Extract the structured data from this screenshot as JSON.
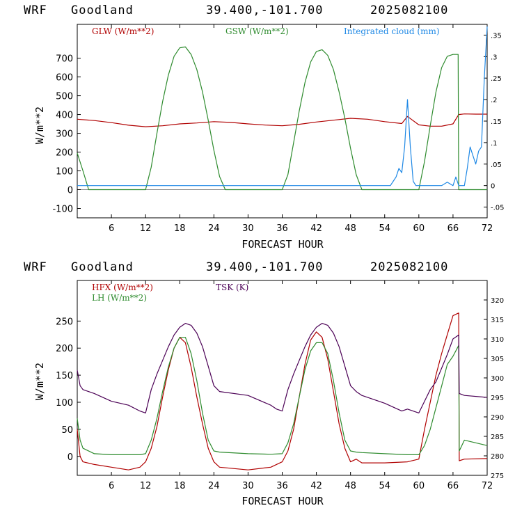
{
  "colors": {
    "red": "#b00000",
    "green": "#2e8b2e",
    "blue": "#1e88e5",
    "purple": "#4b0055"
  },
  "chart_data": [
    {
      "type": "line",
      "header": {
        "model": "WRF",
        "station": "Goodland",
        "coords": "39.400,-101.700",
        "date": "2025082100"
      },
      "xlabel": "FORECAST HOUR",
      "ylabel": "W/m**2",
      "xlim": [
        0,
        72
      ],
      "ylim": [
        -150,
        880
      ],
      "y2lim": [
        -0.075,
        0.375
      ],
      "x_ticks": [
        6,
        12,
        18,
        24,
        30,
        36,
        42,
        48,
        54,
        60,
        66,
        72
      ],
      "y_ticks": [
        -100,
        0,
        100,
        200,
        300,
        400,
        500,
        600,
        700
      ],
      "y2_ticks": [
        {
          "v": -0.05,
          "label": "-.05"
        },
        {
          "v": 0,
          "label": "0"
        },
        {
          "v": 0.05,
          "label": ".05"
        },
        {
          "v": 0.1,
          "label": ".1"
        },
        {
          "v": 0.15,
          "label": ".15"
        },
        {
          "v": 0.2,
          "label": ".2"
        },
        {
          "v": 0.25,
          "label": ".25"
        },
        {
          "v": 0.3,
          "label": ".3"
        },
        {
          "v": 0.35,
          "label": ".35"
        }
      ],
      "series": [
        {
          "name": "GLW (W/m**2)",
          "color": "#b00000",
          "axis": "left",
          "x": [
            0,
            3,
            6,
            9,
            12,
            15,
            18,
            21,
            24,
            27,
            30,
            33,
            36,
            39,
            42,
            45,
            48,
            51,
            54,
            57,
            58,
            60,
            62,
            64,
            66,
            67,
            68,
            70,
            72
          ],
          "y": [
            375,
            368,
            357,
            343,
            335,
            340,
            350,
            355,
            362,
            358,
            350,
            344,
            340,
            348,
            360,
            370,
            380,
            375,
            362,
            352,
            390,
            345,
            338,
            338,
            350,
            400,
            403,
            402,
            402
          ]
        },
        {
          "name": "GSW (W/m**2)",
          "color": "#2e8b2e",
          "axis": "left",
          "x": [
            0,
            1,
            2,
            12,
            13,
            14,
            15,
            16,
            17,
            18,
            19,
            20,
            21,
            22,
            23,
            24,
            25,
            26,
            36,
            37,
            38,
            39,
            40,
            41,
            42,
            43,
            44,
            45,
            46,
            47,
            48,
            49,
            50,
            60,
            61,
            62,
            63,
            64,
            65,
            66,
            66.9,
            67,
            72
          ],
          "y": [
            195,
            100,
            0,
            0,
            120,
            300,
            470,
            610,
            710,
            755,
            760,
            720,
            640,
            520,
            370,
            210,
            70,
            0,
            0,
            80,
            250,
            420,
            570,
            680,
            735,
            745,
            715,
            640,
            520,
            380,
            220,
            80,
            0,
            0,
            150,
            340,
            520,
            650,
            710,
            720,
            720,
            0,
            0
          ]
        },
        {
          "name": "Integrated cloud (mm)",
          "color": "#1e88e5",
          "axis": "right",
          "x": [
            0,
            55,
            55.5,
            56,
            56.5,
            57,
            57.5,
            58,
            58.5,
            59,
            59.5,
            60,
            64,
            65,
            66,
            66.5,
            67,
            68,
            68.5,
            69,
            69.5,
            70,
            70.5,
            71,
            71.5,
            72
          ],
          "y": [
            0,
            0,
            0.01,
            0.02,
            0.04,
            0.03,
            0.09,
            0.2,
            0.09,
            0.01,
            0,
            0,
            0,
            0.008,
            0,
            0.02,
            0,
            0,
            0.04,
            0.09,
            0.07,
            0.05,
            0.08,
            0.09,
            0.25,
            0.37
          ]
        }
      ]
    },
    {
      "type": "line",
      "header": {
        "model": "WRF",
        "station": "Goodland",
        "coords": "39.400,-101.700",
        "date": "2025082100"
      },
      "xlabel": "FORECAST HOUR",
      "ylabel": "W/m**2",
      "xlim": [
        0,
        72
      ],
      "ylim": [
        -35,
        325
      ],
      "y2lim": [
        275,
        325
      ],
      "x_ticks": [
        6,
        12,
        18,
        24,
        30,
        36,
        42,
        48,
        54,
        60,
        66,
        72
      ],
      "y_ticks": [
        0,
        50,
        100,
        150,
        200,
        250
      ],
      "y2_ticks": [
        {
          "v": 275,
          "label": "275"
        },
        {
          "v": 280,
          "label": "280"
        },
        {
          "v": 285,
          "label": "285"
        },
        {
          "v": 290,
          "label": "290"
        },
        {
          "v": 295,
          "label": "295"
        },
        {
          "v": 300,
          "label": "300"
        },
        {
          "v": 305,
          "label": "305"
        },
        {
          "v": 310,
          "label": "310"
        },
        {
          "v": 315,
          "label": "315"
        },
        {
          "v": 320,
          "label": "320"
        }
      ],
      "series": [
        {
          "name": "HFX (W/m**2)",
          "color": "#b00000",
          "axis": "left",
          "x": [
            0,
            0.5,
            1,
            3,
            6,
            9,
            11,
            12,
            13,
            14,
            15,
            16,
            17,
            18,
            19,
            20,
            21,
            22,
            23,
            24,
            25,
            30,
            34,
            36,
            37,
            38,
            39,
            40,
            41,
            42,
            43,
            44,
            45,
            46,
            47,
            48,
            49,
            50,
            54,
            58,
            60,
            61,
            62,
            63,
            64,
            65,
            66,
            67,
            67.1,
            68,
            72
          ],
          "y": [
            50,
            0,
            -10,
            -15,
            -20,
            -25,
            -20,
            -10,
            15,
            55,
            110,
            160,
            200,
            220,
            210,
            165,
            110,
            60,
            15,
            -10,
            -20,
            -25,
            -20,
            -10,
            10,
            50,
            110,
            170,
            215,
            230,
            220,
            180,
            120,
            60,
            15,
            -10,
            -5,
            -12,
            -12,
            -10,
            -5,
            50,
            100,
            150,
            190,
            225,
            260,
            265,
            -8,
            -5,
            -4
          ]
        },
        {
          "name": "LH (W/m**2)",
          "color": "#2e8b2e",
          "axis": "left",
          "x": [
            0,
            0.5,
            1,
            3,
            6,
            9,
            11,
            12,
            13,
            14,
            15,
            16,
            17,
            18,
            19,
            20,
            21,
            22,
            23,
            24,
            25,
            30,
            34,
            36,
            37,
            38,
            39,
            40,
            41,
            42,
            43,
            44,
            45,
            46,
            47,
            48,
            49,
            50,
            54,
            58,
            60,
            61,
            62,
            63,
            64,
            65,
            66,
            67,
            67.1,
            68,
            70,
            72
          ],
          "y": [
            70,
            30,
            15,
            5,
            3,
            3,
            3,
            5,
            30,
            70,
            120,
            165,
            200,
            220,
            220,
            190,
            140,
            80,
            30,
            10,
            8,
            5,
            4,
            5,
            25,
            60,
            110,
            160,
            195,
            210,
            210,
            190,
            140,
            80,
            30,
            10,
            8,
            7,
            5,
            3,
            3,
            20,
            50,
            90,
            130,
            170,
            185,
            205,
            10,
            30,
            25,
            20
          ]
        },
        {
          "name": "TSK (K)",
          "color": "#4b0055",
          "axis": "right",
          "x": [
            0,
            0.5,
            1,
            3,
            6,
            9,
            11,
            12,
            13,
            14,
            15,
            16,
            17,
            18,
            19,
            20,
            21,
            22,
            23,
            24,
            25,
            30,
            34,
            35,
            36,
            37,
            38,
            39,
            40,
            41,
            42,
            43,
            44,
            45,
            46,
            47,
            48,
            49,
            50,
            54,
            57,
            58,
            60,
            61,
            62,
            63,
            64,
            65,
            66,
            67,
            67.1,
            68,
            72
          ],
          "y": [
            302,
            298,
            297,
            296,
            294,
            293,
            291.5,
            291,
            297,
            301,
            304.5,
            308,
            311,
            313,
            314,
            313.5,
            311.5,
            308,
            303,
            298,
            296.5,
            295.5,
            293,
            292,
            291.5,
            297,
            301,
            304.5,
            308,
            311,
            313,
            314,
            313.5,
            311.5,
            308,
            303,
            298,
            296.5,
            295.5,
            293.5,
            291.5,
            292,
            291,
            294,
            297,
            299,
            302.5,
            306,
            310,
            311,
            296,
            295.5,
            295
          ]
        }
      ]
    }
  ]
}
